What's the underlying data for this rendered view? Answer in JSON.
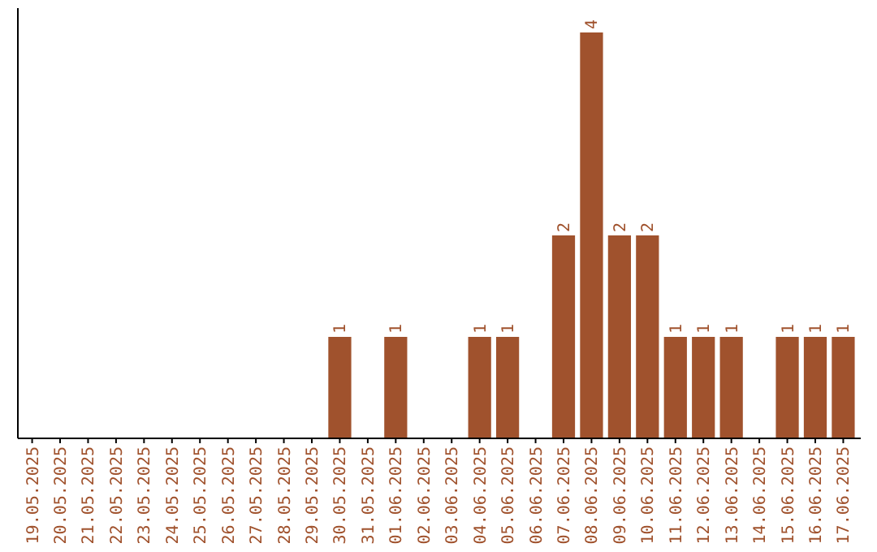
{
  "chart_data": {
    "type": "bar",
    "categories": [
      "19.05.2025",
      "20.05.2025",
      "21.05.2025",
      "22.05.2025",
      "23.05.2025",
      "24.05.2025",
      "25.05.2025",
      "26.05.2025",
      "27.05.2025",
      "28.05.2025",
      "29.05.2025",
      "30.05.2025",
      "31.05.2025",
      "01.06.2025",
      "02.06.2025",
      "03.06.2025",
      "04.06.2025",
      "05.06.2025",
      "06.06.2025",
      "07.06.2025",
      "08.06.2025",
      "09.06.2025",
      "10.06.2025",
      "11.06.2025",
      "12.06.2025",
      "13.06.2025",
      "14.06.2025",
      "15.06.2025",
      "16.06.2025",
      "17.06.2025"
    ],
    "values": [
      0,
      0,
      0,
      0,
      0,
      0,
      0,
      0,
      0,
      0,
      0,
      1,
      0,
      1,
      0,
      0,
      1,
      1,
      0,
      2,
      4,
      2,
      2,
      1,
      1,
      1,
      0,
      1,
      1,
      1
    ],
    "value_labels": [
      null,
      null,
      null,
      null,
      null,
      null,
      null,
      null,
      null,
      null,
      null,
      "1",
      null,
      "1",
      null,
      null,
      "1",
      "1",
      null,
      "2",
      "4",
      "2",
      "2",
      "1",
      "1",
      "1",
      null,
      "1",
      "1",
      "1"
    ],
    "color": "#a0522d",
    "tick_labels": "x"
  }
}
